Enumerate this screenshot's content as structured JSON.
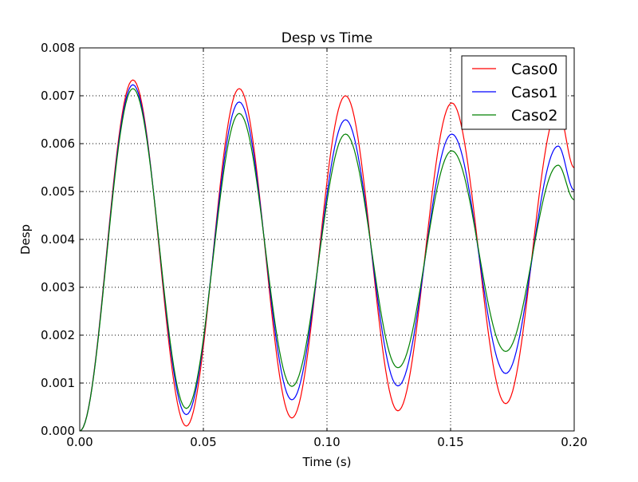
{
  "chart_data": {
    "type": "line",
    "title": "Desp vs Time",
    "xlabel": "Time (s)",
    "ylabel": "Desp",
    "xlim": [
      0,
      0.2
    ],
    "ylim": [
      0,
      0.008
    ],
    "xticks": [
      "0.00",
      "0.05",
      "0.10",
      "0.15",
      "0.20"
    ],
    "xtick_values": [
      0,
      0.05,
      0.1,
      0.15,
      0.2
    ],
    "yticks": [
      "0.000",
      "0.001",
      "0.002",
      "0.003",
      "0.004",
      "0.005",
      "0.006",
      "0.007",
      "0.008"
    ],
    "ytick_values": [
      0,
      0.001,
      0.002,
      0.003,
      0.004,
      0.005,
      0.006,
      0.007,
      0.008
    ],
    "grid": true,
    "legend_position": "top-right",
    "series": [
      {
        "name": "Caso0",
        "color": "#ff0000",
        "points": [
          [
            0,
            0
          ],
          [
            0.0215,
            0.00733
          ],
          [
            0.0431,
            0.0001
          ],
          [
            0.0645,
            0.00715
          ],
          [
            0.0858,
            0.00027
          ],
          [
            0.1075,
            0.007
          ],
          [
            0.1287,
            0.00042
          ],
          [
            0.1505,
            0.00685
          ],
          [
            0.1723,
            0.00057
          ],
          [
            0.1935,
            0.0067
          ],
          [
            0.2,
            0.0055
          ]
        ]
      },
      {
        "name": "Caso1",
        "color": "#0000ff",
        "points": [
          [
            0,
            0
          ],
          [
            0.0215,
            0.00723
          ],
          [
            0.0431,
            0.00034
          ],
          [
            0.0645,
            0.00687
          ],
          [
            0.0858,
            0.00065
          ],
          [
            0.1075,
            0.0065
          ],
          [
            0.1287,
            0.00094
          ],
          [
            0.1505,
            0.0062
          ],
          [
            0.1723,
            0.0012
          ],
          [
            0.1935,
            0.00595
          ],
          [
            0.2,
            0.00503
          ]
        ]
      },
      {
        "name": "Caso2",
        "color": "#008000",
        "points": [
          [
            0,
            0
          ],
          [
            0.0215,
            0.00715
          ],
          [
            0.0431,
            0.00047
          ],
          [
            0.0645,
            0.00663
          ],
          [
            0.0858,
            0.00093
          ],
          [
            0.1075,
            0.0062
          ],
          [
            0.1287,
            0.00132
          ],
          [
            0.1505,
            0.00585
          ],
          [
            0.1723,
            0.00166
          ],
          [
            0.1935,
            0.00555
          ],
          [
            0.2,
            0.00483
          ]
        ]
      }
    ]
  }
}
